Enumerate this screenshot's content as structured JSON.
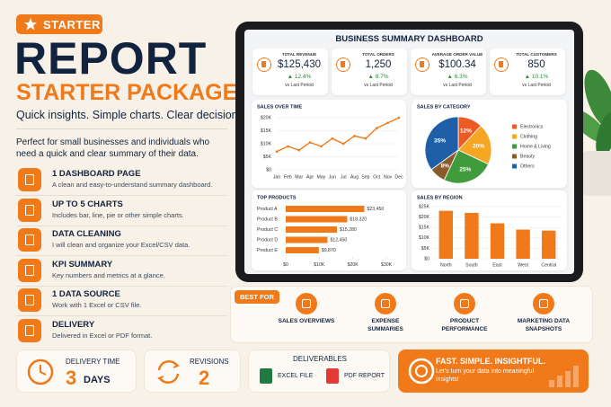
{
  "badge": "STARTER",
  "title": "REPORT",
  "subtitle": "STARTER PACKAGE",
  "tagline": "Quick insights. Simple charts. Clear decisions.",
  "description": "Perfect for small businesses and individuals who need a quick and clear summary of their data.",
  "features": [
    {
      "title": "1 DASHBOARD PAGE",
      "text": "A clean and easy-to-understand summary dashboard."
    },
    {
      "title": "UP TO 5 CHARTS",
      "text": "Includes bar, line, pie or other simple charts."
    },
    {
      "title": "DATA CLEANING",
      "text": "I will clean and organize your Excel/CSV data."
    },
    {
      "title": "KPI SUMMARY",
      "text": "Key numbers and metrics at a glance."
    },
    {
      "title": "1 DATA SOURCE",
      "text": "Work with 1 Excel or CSV file."
    },
    {
      "title": "DELIVERY",
      "text": "Delivered in Excel or PDF format."
    }
  ],
  "dashboard": {
    "title": "BUSINESS SUMMARY DASHBOARD",
    "kpis": [
      {
        "label": "TOTAL REVENUE",
        "value": "$125,430",
        "change": "▲ 12.4%",
        "note": "vs Last Period"
      },
      {
        "label": "TOTAL ORDERS",
        "value": "1,250",
        "change": "▲ 8.7%",
        "note": "vs Last Period"
      },
      {
        "label": "AVERAGE ORDER VALUE",
        "value": "$100.34",
        "change": "▲ 6.3%",
        "note": "vs Last Period"
      },
      {
        "label": "TOTAL CUSTOMERS",
        "value": "850",
        "change": "▲ 10.1%",
        "note": "vs Last Period"
      }
    ],
    "charts": [
      {
        "type": "line",
        "title": "SALES OVER TIME",
        "categories": [
          "Jan",
          "Feb",
          "Mar",
          "Apr",
          "May",
          "Jun",
          "Jul",
          "Aug",
          "Sep",
          "Oct",
          "Nov",
          "Dec"
        ],
        "values": [
          7000,
          9000,
          7500,
          10500,
          9000,
          12000,
          10000,
          13000,
          12000,
          16000,
          18000,
          20000
        ],
        "color": "#f07a1a",
        "ylim": [
          0,
          20000
        ],
        "yticks": [
          {
            "value": 0,
            "label": "$0"
          },
          {
            "value": 5000,
            "label": "$5K"
          },
          {
            "value": 10000,
            "label": "$10K"
          },
          {
            "value": 15000,
            "label": "$15K"
          },
          {
            "value": 20000,
            "label": "$20K"
          }
        ]
      },
      {
        "type": "pie",
        "title": "SALES BY CATEGORY",
        "categories": [
          "Electronics",
          "Clothing",
          "Home & Living",
          "Beauty",
          "Others"
        ],
        "values": [
          12,
          20,
          25,
          8,
          35
        ],
        "value_labels": [
          "12%",
          "20%",
          "25%",
          "8%",
          "35%"
        ],
        "colors": [
          "#ee5a24",
          "#f5a623",
          "#3f9b3b",
          "#8b5a2b",
          "#1f5fa8"
        ]
      },
      {
        "type": "hbar",
        "title": "TOP PRODUCTS",
        "categories": [
          "Product A",
          "Product B",
          "Product C",
          "Product D",
          "Product E"
        ],
        "values": [
          23450,
          18320,
          15280,
          12450,
          9870
        ],
        "value_labels": [
          "$23,450",
          "$18,320",
          "$15,280",
          "$12,450",
          "$9,870"
        ],
        "color": "#f07a1a",
        "xlim": [
          0,
          30000
        ],
        "xticks": [
          {
            "value": 0,
            "label": "$0"
          },
          {
            "value": 10000,
            "label": "$10K"
          },
          {
            "value": 20000,
            "label": "$20K"
          },
          {
            "value": 30000,
            "label": "$30K"
          }
        ]
      },
      {
        "type": "bar",
        "title": "SALES BY REGION",
        "categories": [
          "North",
          "South",
          "East",
          "West",
          "Central"
        ],
        "values": [
          23000,
          22000,
          17000,
          14000,
          13500
        ],
        "color": "#f07a1a",
        "ylim": [
          0,
          25000
        ],
        "yticks": [
          {
            "value": 0,
            "label": "$0"
          },
          {
            "value": 5000,
            "label": "$5K"
          },
          {
            "value": 10000,
            "label": "$10K"
          },
          {
            "value": 15000,
            "label": "$15K"
          },
          {
            "value": 20000,
            "label": "$20K"
          },
          {
            "value": 25000,
            "label": "$25K"
          }
        ]
      }
    ]
  },
  "best_for": {
    "label": "BEST FOR",
    "items": [
      "SALES OVERVIEWS",
      "EXPENSE SUMMARIES",
      "PRODUCT PERFORMANCE",
      "MARKETING DATA SNAPSHOTS"
    ]
  },
  "delivery": {
    "label": "DELIVERY TIME",
    "value": 3,
    "unit": "DAYS"
  },
  "revisions": {
    "label": "REVISIONS",
    "value": 2
  },
  "deliverables": {
    "label": "DELIVERABLES",
    "items": [
      "EXCEL FILE",
      "PDF REPORT"
    ]
  },
  "cta": {
    "title": "FAST. SIMPLE. INSIGHTFUL.",
    "text": "Let's turn your data into meaningful insights!"
  }
}
